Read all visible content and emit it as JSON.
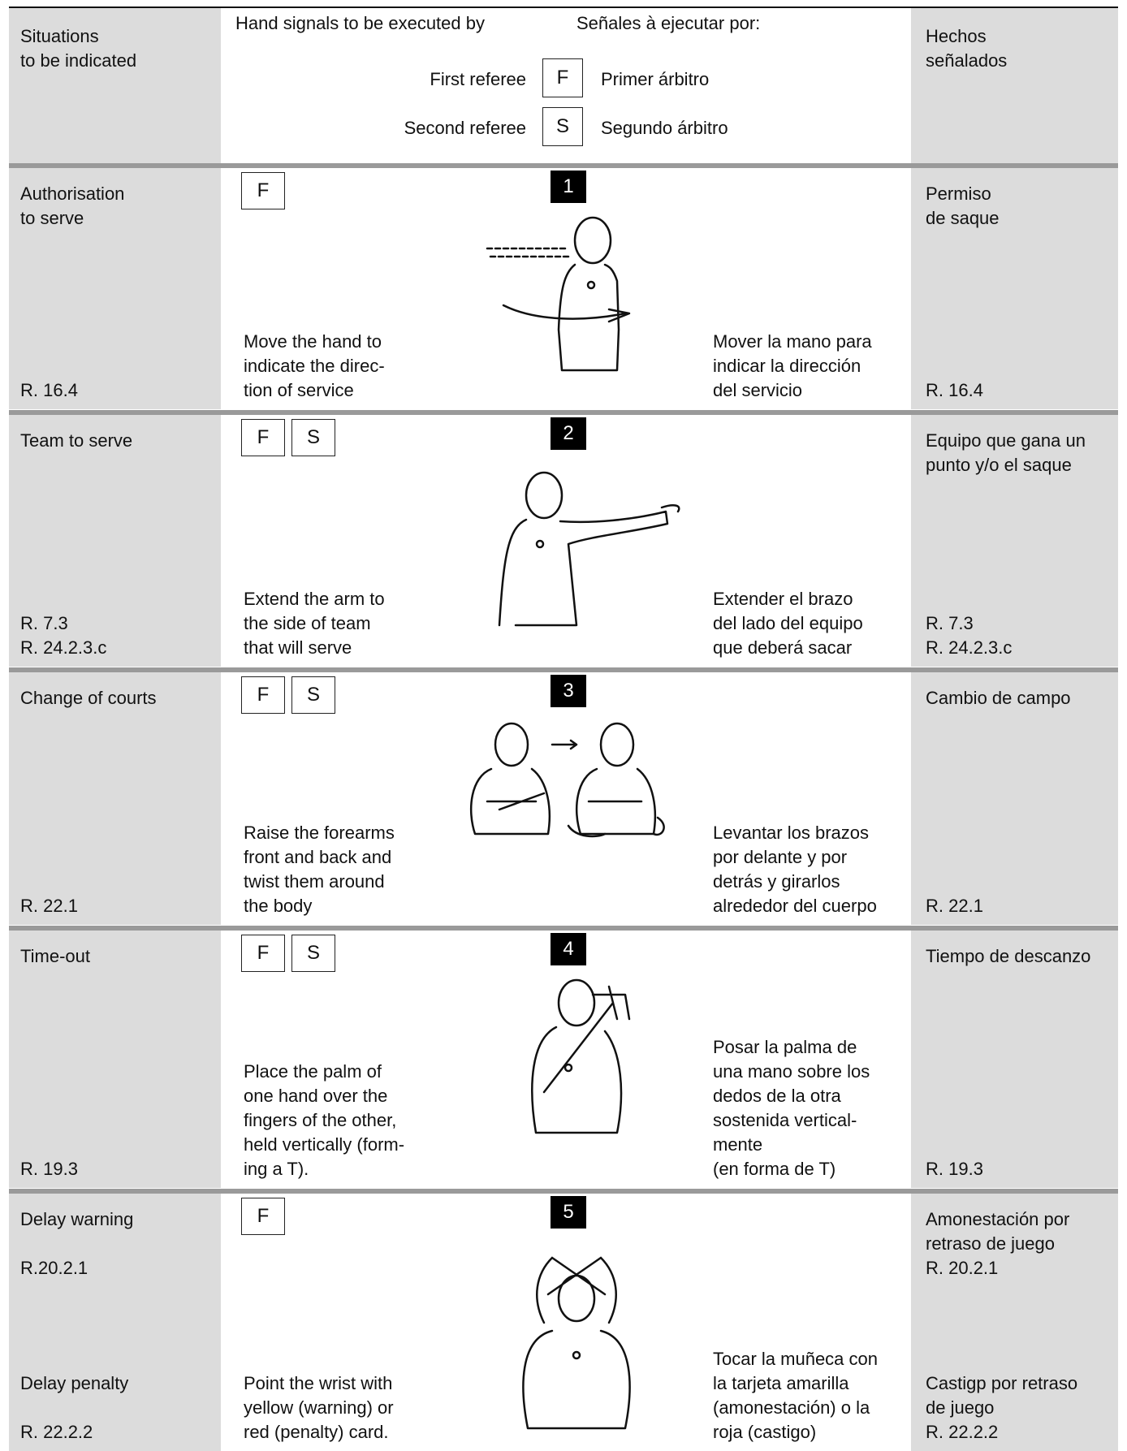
{
  "header": {
    "situations": "Situations\nto be indicated",
    "hand_signals": "Hand signals to be executed by",
    "senales": "Señales à ejecutar por:",
    "first_referee": "First referee",
    "first_code": "F",
    "primer": "Primer árbitro",
    "second_referee": "Second referee",
    "second_code": "S",
    "segundo": "Segundo árbitro",
    "hechos": "Hechos\nseñalados"
  },
  "rows": [
    {
      "number": "1",
      "referees": [
        "F"
      ],
      "left_top": "Authorisation\nto serve",
      "left_bottom": "R. 16.4",
      "description_en": "Move the hand to\nindicate the direc-\ntion of service",
      "description_es": "Mover la mano para\nindicar la dirección\ndel servicio",
      "right_top": "Permiso\nde saque",
      "right_bottom": "R. 16.4"
    },
    {
      "number": "2",
      "referees": [
        "F",
        "S"
      ],
      "left_top": "Team to serve",
      "left_bottom": "R. 7.3\nR. 24.2.3.c",
      "description_en": "Extend the arm to\nthe side of team\nthat will serve",
      "description_es": "Extender el brazo\ndel lado del equipo\nque deberá sacar",
      "right_top": "Equipo que gana un\npunto y/o el saque",
      "right_bottom": "R. 7.3\nR. 24.2.3.c"
    },
    {
      "number": "3",
      "referees": [
        "F",
        "S"
      ],
      "left_top": "Change of courts",
      "left_bottom": "R. 22.1",
      "description_en": "Raise the forearms\nfront and back and\ntwist them around\nthe body",
      "description_es": "Levantar los brazos\npor delante y por\ndetrás y girarlos\nalrededor del cuerpo",
      "right_top": "Cambio de campo",
      "right_bottom": "R. 22.1"
    },
    {
      "number": "4",
      "referees": [
        "F",
        "S"
      ],
      "left_top": "Time-out",
      "left_bottom": "R. 19.3",
      "description_en": "Place the palm of\none hand over the\nfingers of the other,\nheld vertically (form-\ning a T).",
      "description_es": "Posar la palma de\nuna mano sobre los\ndedos de la otra\nsostenida vertical-\nmente\n(en forma de T)",
      "right_top": "Tiempo de descanzo",
      "right_bottom": "R. 19.3"
    },
    {
      "number": "5",
      "referees": [
        "F"
      ],
      "left_top": "Delay warning\n\nR.20.2.1",
      "left_bottom": "Delay penalty\n\nR. 22.2.2",
      "description_en": "Point the wrist with\nyellow (warning) or\nred (penalty) card.",
      "description_es": "Tocar la muñeca con\nla tarjeta amarilla\n(amonestación) o la\nroja (castigo)",
      "right_top": "Amonestación por\nretraso de juego\nR. 20.2.1",
      "right_bottom": "Castigp por retraso\nde juego\nR. 22.2.2"
    }
  ]
}
